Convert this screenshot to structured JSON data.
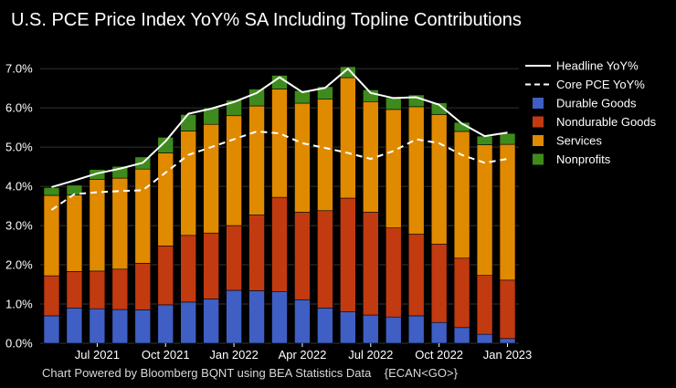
{
  "chart_data": {
    "type": "bar",
    "stacked": true,
    "title": "U.S. PCE Price Index YoY% SA Including Topline Contributions",
    "footer": "Chart Powered by Bloomberg BQNT using BEA Statistics Data    {ECAN<GO>}",
    "x_tick_labels": [
      "Jul 2021",
      "Oct 2021",
      "Jan 2022",
      "Apr 2022",
      "Jul 2022",
      "Oct 2022",
      "Jan 2023"
    ],
    "x_tick_indices": [
      2,
      5,
      8,
      11,
      14,
      17,
      20
    ],
    "y_tick_labels": [
      "0.0%",
      "1.0%",
      "2.0%",
      "3.0%",
      "4.0%",
      "5.0%",
      "6.0%",
      "7.0%"
    ],
    "ylim": [
      0,
      7.4
    ],
    "months": [
      "May 2021",
      "Jun 2021",
      "Jul 2021",
      "Aug 2021",
      "Sep 2021",
      "Oct 2021",
      "Nov 2021",
      "Dec 2021",
      "Jan 2022",
      "Feb 2022",
      "Mar 2022",
      "Apr 2022",
      "May 2022",
      "Jun 2022",
      "Jul 2022",
      "Aug 2022",
      "Sep 2022",
      "Oct 2022",
      "Nov 2022",
      "Dec 2022",
      "Jan 2023"
    ],
    "series": [
      {
        "name": "Durable Goods",
        "color": "#3f5fc4",
        "values": [
          0.7,
          0.9,
          0.88,
          0.86,
          0.85,
          0.98,
          1.05,
          1.13,
          1.35,
          1.34,
          1.32,
          1.11,
          0.9,
          0.8,
          0.72,
          0.67,
          0.7,
          0.53,
          0.4,
          0.23,
          0.12
        ]
      },
      {
        "name": "Nondurable Goods",
        "color": "#c23a10",
        "values": [
          1.02,
          0.93,
          0.96,
          1.03,
          1.19,
          1.5,
          1.7,
          1.68,
          1.65,
          1.93,
          2.4,
          2.23,
          2.48,
          2.9,
          2.62,
          2.27,
          2.08,
          2.0,
          1.77,
          1.5,
          1.49
        ]
      },
      {
        "name": "Services",
        "color": "#e08a00",
        "values": [
          2.05,
          1.95,
          2.34,
          2.32,
          2.4,
          2.37,
          2.66,
          2.77,
          2.8,
          2.78,
          2.76,
          2.78,
          2.84,
          3.07,
          2.82,
          3.02,
          3.25,
          3.3,
          3.23,
          3.33,
          3.46
        ]
      },
      {
        "name": "Nonprofits",
        "color": "#3f8a1c",
        "values": [
          0.2,
          0.25,
          0.25,
          0.3,
          0.31,
          0.4,
          0.42,
          0.42,
          0.4,
          0.43,
          0.35,
          0.32,
          0.32,
          0.28,
          0.3,
          0.3,
          0.3,
          0.3,
          0.23,
          0.22,
          0.28
        ]
      }
    ],
    "lines": [
      {
        "name": "Headline YoY%",
        "style": "solid",
        "color": "#ffffff",
        "values": [
          3.98,
          4.15,
          4.33,
          4.45,
          4.6,
          5.15,
          5.85,
          5.98,
          6.15,
          6.38,
          6.78,
          6.4,
          6.51,
          7.0,
          6.38,
          6.25,
          6.27,
          6.08,
          5.6,
          5.28,
          5.37
        ]
      },
      {
        "name": "Core PCE YoY%",
        "style": "dashed",
        "color": "#ffffff",
        "values": [
          3.4,
          3.8,
          3.85,
          3.88,
          3.9,
          4.35,
          4.8,
          5.0,
          5.2,
          5.4,
          5.35,
          5.1,
          4.98,
          4.85,
          4.7,
          4.9,
          5.2,
          5.1,
          4.8,
          4.6,
          4.7
        ]
      }
    ],
    "legend": {
      "position": "top-right",
      "entries": [
        "Headline YoY%",
        "Core PCE YoY%",
        "Durable Goods",
        "Nondurable Goods",
        "Services",
        "Nonprofits"
      ]
    }
  }
}
